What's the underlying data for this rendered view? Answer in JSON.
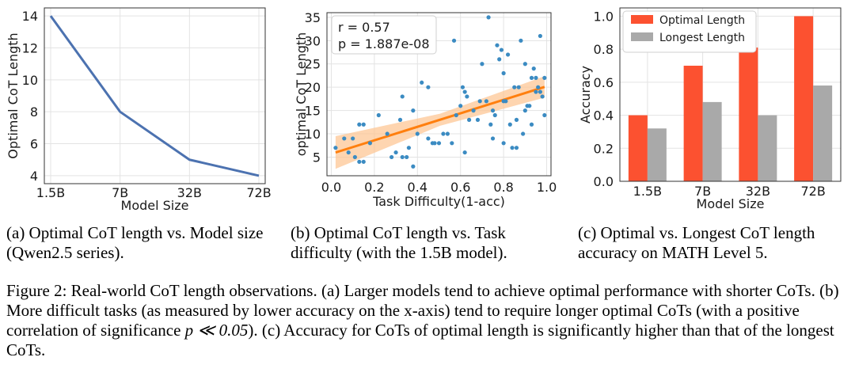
{
  "chart_data": [
    {
      "type": "line",
      "x_categories": [
        "1.5B",
        "7B",
        "32B",
        "72B"
      ],
      "values": [
        14,
        8,
        5,
        4
      ],
      "xlabel": "Model Size",
      "ylabel": "Optimal CoT Length",
      "ylim": [
        3.5,
        14.5
      ],
      "yticks": [
        4,
        6,
        8,
        10,
        12,
        14
      ],
      "grid": true,
      "line_color": "#4c72b0"
    },
    {
      "type": "scatter",
      "xlabel": "Task Difficulty(1-acc)",
      "ylabel": "optimal CoT Length",
      "xlim": [
        -0.02,
        1.02
      ],
      "ylim": [
        1,
        36
      ],
      "xticks": [
        "0.0",
        "0.2",
        "0.4",
        "0.6",
        "0.8",
        "1.0"
      ],
      "yticks": [
        5,
        10,
        15,
        20,
        25,
        30,
        35
      ],
      "grid": true,
      "annotation": [
        "r = 0.57",
        "p = 1.887e-08"
      ],
      "regression": {
        "intercept": 5.7,
        "slope": 14.5,
        "x_range": [
          0.02,
          0.99
        ],
        "color": "#ff7f0e",
        "band_color": "#fdc38f"
      },
      "point_color": "#3b8bc2",
      "points": [
        [
          0.02,
          7
        ],
        [
          0.06,
          9
        ],
        [
          0.08,
          6
        ],
        [
          0.1,
          9
        ],
        [
          0.11,
          5
        ],
        [
          0.13,
          12
        ],
        [
          0.13,
          4
        ],
        [
          0.15,
          4
        ],
        [
          0.15,
          12
        ],
        [
          0.18,
          8
        ],
        [
          0.22,
          14
        ],
        [
          0.26,
          10
        ],
        [
          0.28,
          5
        ],
        [
          0.3,
          6
        ],
        [
          0.32,
          13
        ],
        [
          0.33,
          18
        ],
        [
          0.33,
          5
        ],
        [
          0.35,
          5
        ],
        [
          0.36,
          7
        ],
        [
          0.38,
          3
        ],
        [
          0.38,
          15
        ],
        [
          0.4,
          10
        ],
        [
          0.42,
          21
        ],
        [
          0.45,
          20
        ],
        [
          0.45,
          9
        ],
        [
          0.47,
          8
        ],
        [
          0.48,
          8
        ],
        [
          0.5,
          8
        ],
        [
          0.52,
          10
        ],
        [
          0.54,
          10
        ],
        [
          0.56,
          8
        ],
        [
          0.57,
          30
        ],
        [
          0.58,
          14
        ],
        [
          0.6,
          16
        ],
        [
          0.61,
          20
        ],
        [
          0.62,
          19
        ],
        [
          0.62,
          6
        ],
        [
          0.63,
          18
        ],
        [
          0.64,
          13
        ],
        [
          0.66,
          15
        ],
        [
          0.68,
          13
        ],
        [
          0.69,
          17
        ],
        [
          0.7,
          25
        ],
        [
          0.72,
          17
        ],
        [
          0.73,
          35
        ],
        [
          0.74,
          12
        ],
        [
          0.75,
          9
        ],
        [
          0.75,
          15
        ],
        [
          0.76,
          14
        ],
        [
          0.77,
          29
        ],
        [
          0.78,
          26
        ],
        [
          0.79,
          28
        ],
        [
          0.8,
          8
        ],
        [
          0.8,
          23
        ],
        [
          0.81,
          17
        ],
        [
          0.82,
          27
        ],
        [
          0.83,
          12
        ],
        [
          0.84,
          7
        ],
        [
          0.85,
          20
        ],
        [
          0.86,
          13
        ],
        [
          0.87,
          20
        ],
        [
          0.88,
          30
        ],
        [
          0.89,
          10
        ],
        [
          0.9,
          25
        ],
        [
          0.91,
          16
        ],
        [
          0.92,
          16
        ],
        [
          0.93,
          22
        ],
        [
          0.93,
          12
        ],
        [
          0.94,
          24
        ],
        [
          0.95,
          22
        ],
        [
          0.96,
          20
        ],
        [
          0.97,
          31
        ],
        [
          0.97,
          19
        ],
        [
          0.98,
          18
        ],
        [
          0.99,
          22
        ],
        [
          0.99,
          14
        ],
        [
          0.95,
          19
        ],
        [
          0.9,
          15
        ],
        [
          0.86,
          7
        ],
        [
          0.8,
          17
        ]
      ]
    },
    {
      "type": "bar",
      "categories": [
        "1.5B",
        "7B",
        "32B",
        "72B"
      ],
      "series": [
        {
          "name": "Optimal Length",
          "values": [
            0.4,
            0.7,
            0.81,
            1.0
          ],
          "color": "#fc5130"
        },
        {
          "name": "Longest Length",
          "values": [
            0.32,
            0.48,
            0.4,
            0.58
          ],
          "color": "#a9a9a9"
        }
      ],
      "xlabel": "Model Size",
      "ylabel": "Accuracy",
      "ylim": [
        0,
        1.05
      ],
      "yticks": [
        "0.0",
        "0.2",
        "0.4",
        "0.6",
        "0.8",
        "1.0"
      ],
      "legend_position": "top-left",
      "grid": true
    }
  ],
  "captions": {
    "a": "(a) Optimal CoT length vs. Model size (Qwen2.5 series).",
    "b": "(b) Optimal CoT length vs. Task difficulty (with the 1.5B model).",
    "c": "(c) Optimal vs. Longest CoT length accuracy on MATH Level 5."
  },
  "figure_caption": {
    "part1": "Figure 2: Real-world CoT length observations. (a) Larger models tend to achieve optimal performance with shorter CoTs. (b) More difficult tasks (as measured by lower accuracy on the x-axis) tend to require longer optimal CoTs (with a positive correlation of significance ",
    "math": "p ≪ 0.05",
    "part2": "). (c) Accuracy for CoTs of optimal length is significantly higher than that of the longest CoTs."
  }
}
